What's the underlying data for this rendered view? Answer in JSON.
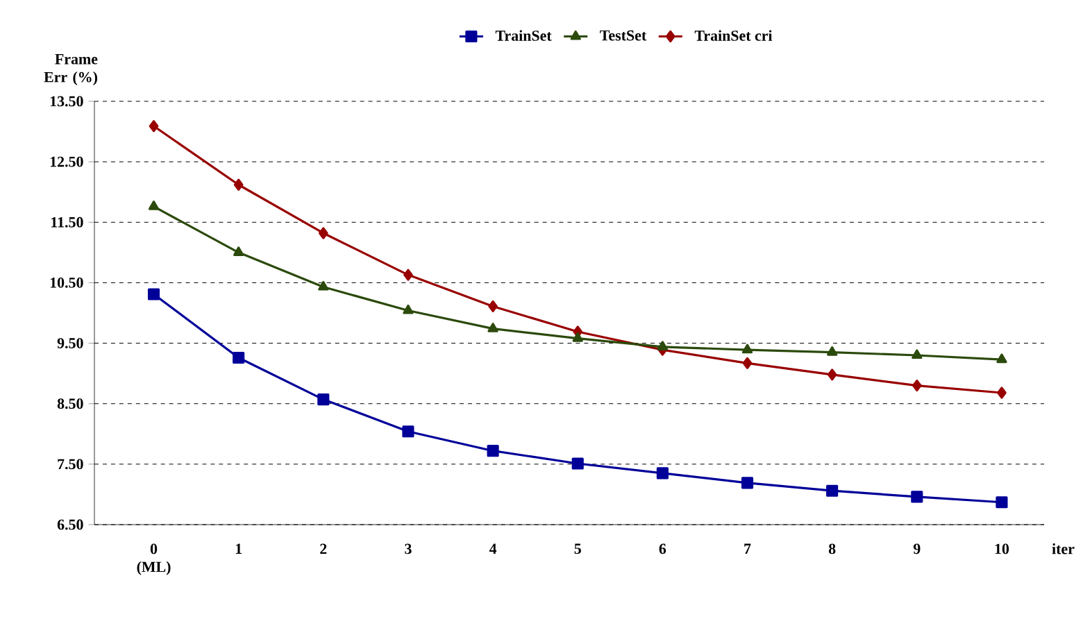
{
  "chart_data": {
    "type": "line",
    "xlabel": "iter",
    "ylabel": "Frame Err (%)",
    "categories": [
      "0 (ML)",
      "1",
      "2",
      "3",
      "4",
      "5",
      "6",
      "7",
      "8",
      "9",
      "10"
    ],
    "series": [
      {
        "name": "TrainSet",
        "color": "#000099",
        "marker": "square",
        "values": [
          10.31,
          9.26,
          8.57,
          8.04,
          7.72,
          7.51,
          7.35,
          7.19,
          7.06,
          6.96,
          6.87
        ]
      },
      {
        "name": "TestSet",
        "color": "#2b4a0c",
        "marker": "triangle",
        "values": [
          11.76,
          11.0,
          10.43,
          10.04,
          9.74,
          9.58,
          9.44,
          9.39,
          9.35,
          9.3,
          9.23
        ]
      },
      {
        "name": "TrainSet cri",
        "color": "#990000",
        "marker": "diamond",
        "values": [
          13.09,
          12.12,
          11.32,
          10.63,
          10.11,
          9.69,
          9.39,
          9.17,
          8.98,
          8.8,
          8.68
        ]
      }
    ],
    "ylim": [
      6.5,
      13.5
    ],
    "yticks": [
      {
        "value": 6.5,
        "label": "6.50"
      },
      {
        "value": 7.5,
        "label": "7.50"
      },
      {
        "value": 8.5,
        "label": "8.50"
      },
      {
        "value": 9.5,
        "label": "9.50"
      },
      {
        "value": 10.5,
        "label": "10.50"
      },
      {
        "value": 11.5,
        "label": "11.50"
      },
      {
        "value": 12.5,
        "label": "12.50"
      },
      {
        "value": 13.5,
        "label": "13.50"
      }
    ],
    "grid": "y",
    "legend": "top",
    "line_style": "solid"
  }
}
